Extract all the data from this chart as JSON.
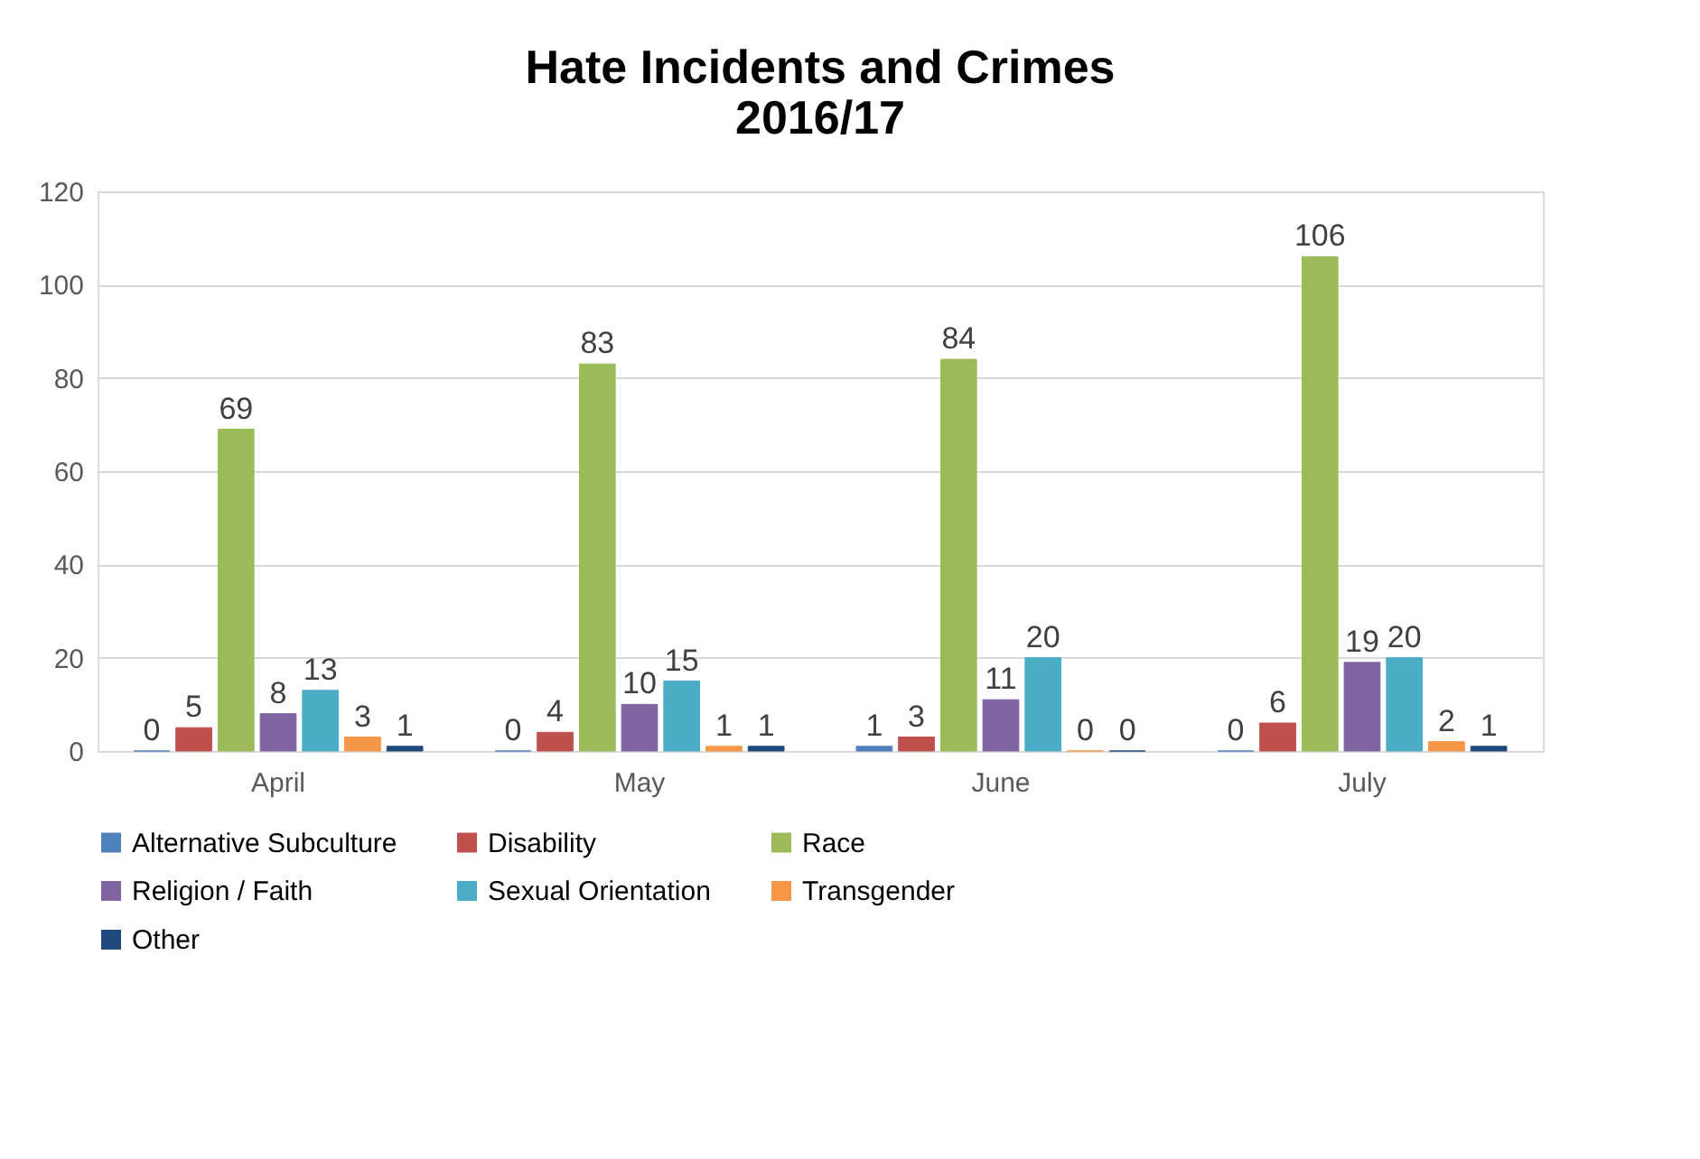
{
  "chart_data": {
    "type": "bar",
    "title": "Hate Incidents and Crimes\n2016/17",
    "categories": [
      "April",
      "May",
      "June",
      "July"
    ],
    "series": [
      {
        "name": "Alternative Subculture",
        "color": "#4f81bd",
        "values": [
          0,
          0,
          1,
          0
        ]
      },
      {
        "name": "Disability",
        "color": "#c0504d",
        "values": [
          5,
          4,
          3,
          6
        ]
      },
      {
        "name": "Race",
        "color": "#9bbb59",
        "values": [
          69,
          83,
          84,
          106
        ]
      },
      {
        "name": "Religion / Faith",
        "color": "#8064a2",
        "values": [
          8,
          10,
          11,
          19
        ]
      },
      {
        "name": "Sexual Orientation",
        "color": "#4bacc6",
        "values": [
          13,
          15,
          20,
          20
        ]
      },
      {
        "name": "Transgender",
        "color": "#f79646",
        "values": [
          3,
          1,
          0,
          2
        ]
      },
      {
        "name": "Other",
        "color": "#1f497d",
        "values": [
          1,
          1,
          0,
          1
        ]
      }
    ],
    "ylim": [
      0,
      120
    ],
    "yticks": [
      0,
      20,
      40,
      60,
      80,
      100,
      120
    ],
    "grid": "y",
    "legend": "bottom",
    "data_labels": true
  }
}
